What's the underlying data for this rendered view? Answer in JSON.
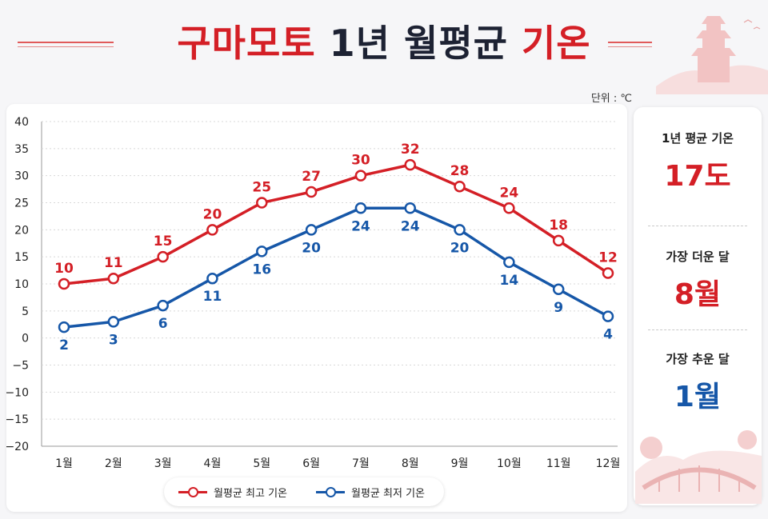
{
  "title": {
    "part1": "구마모토",
    "part2": "1년 월평균",
    "part3": "기온"
  },
  "unit_label": "단위 : ℃",
  "colors": {
    "high": "#d41f26",
    "low": "#1657a8",
    "title_dark": "#1d2233"
  },
  "chart_data": {
    "type": "line",
    "categories": [
      "1월",
      "2월",
      "3월",
      "4월",
      "5월",
      "6월",
      "7월",
      "8월",
      "9월",
      "10월",
      "11월",
      "12월"
    ],
    "series": [
      {
        "name": "월평균 최고 기온",
        "values": [
          10,
          11,
          15,
          20,
          25,
          27,
          30,
          32,
          28,
          24,
          18,
          12
        ],
        "color": "#d41f26"
      },
      {
        "name": "월평균 최저 기온",
        "values": [
          2,
          3,
          6,
          11,
          16,
          20,
          24,
          24,
          20,
          14,
          9,
          4
        ],
        "color": "#1657a8"
      }
    ],
    "ylim": [
      -20,
      40
    ],
    "yticks": [
      "40",
      "35",
      "30",
      "25",
      "20",
      "15",
      "10",
      "5",
      "0",
      "−5",
      "−10",
      "−15",
      "−20"
    ],
    "ytick_values": [
      40,
      35,
      30,
      25,
      20,
      15,
      10,
      5,
      0,
      -5,
      -10,
      -15,
      -20
    ],
    "grid": true,
    "legend_position": "bottom"
  },
  "sidebar": {
    "avg_label": "1년 평균 기온",
    "avg_value": "17도",
    "hot_label": "가장 더운 달",
    "hot_value": "8월",
    "cold_label": "가장 추운 달",
    "cold_value": "1월"
  }
}
